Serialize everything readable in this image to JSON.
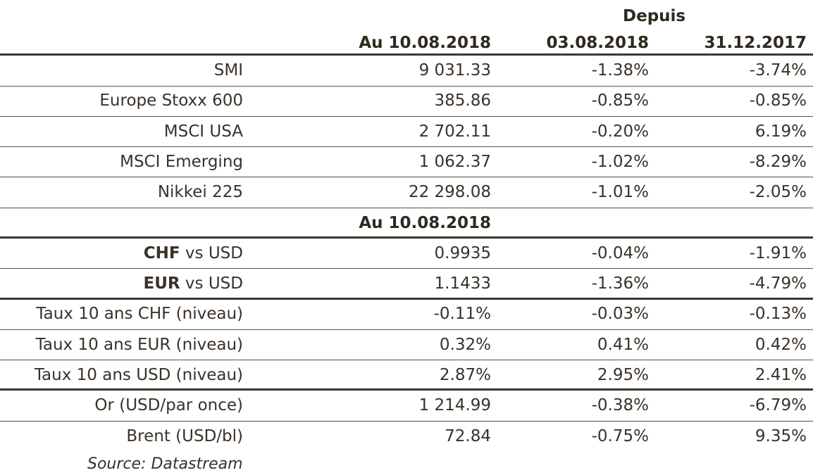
{
  "header": {
    "depuis": "Depuis",
    "col1": "Au 10.08.2018",
    "col2": "03.08.2018",
    "col3": "31.12.2017"
  },
  "section2_header": "Au 10.08.2018",
  "rows_indices": [
    {
      "label": "SMI",
      "v1": "9 031.33",
      "v2": "-1.38%",
      "v3": "-3.74%"
    },
    {
      "label": "Europe Stoxx 600",
      "v1": "385.86",
      "v2": "-0.85%",
      "v3": "-0.85%"
    },
    {
      "label": "MSCI USA",
      "v1": "2 702.11",
      "v2": "-0.20%",
      "v3": "6.19%"
    },
    {
      "label": "MSCI Emerging",
      "v1": "1 062.37",
      "v2": "-1.02%",
      "v3": "-8.29%"
    },
    {
      "label": "Nikkei 225",
      "v1": "22 298.08",
      "v2": "-1.01%",
      "v3": "-2.05%"
    }
  ],
  "rows_fx": [
    {
      "label_bold": "CHF",
      "label_rest": " vs USD",
      "v1": "0.9935",
      "v2": "-0.04%",
      "v3": "-1.91%"
    },
    {
      "label_bold": "EUR",
      "label_rest": " vs USD",
      "v1": "1.1433",
      "v2": "-1.36%",
      "v3": "-4.79%"
    }
  ],
  "rows_rates": [
    {
      "label": "Taux 10 ans CHF (niveau)",
      "v1": "-0.11%",
      "v2": "-0.03%",
      "v3": "-0.13%"
    },
    {
      "label": "Taux 10 ans EUR (niveau)",
      "v1": "0.32%",
      "v2": "0.41%",
      "v3": "0.42%"
    },
    {
      "label": "Taux 10 ans USD (niveau)",
      "v1": "2.87%",
      "v2": "2.95%",
      "v3": "2.41%"
    }
  ],
  "rows_commodities": [
    {
      "label": "Or (USD/par once)",
      "v1": "1 214.99",
      "v2": "-0.38%",
      "v3": "-6.79%"
    },
    {
      "label": "Brent (USD/bl)",
      "v1": "72.84",
      "v2": "-0.75%",
      "v3": "9.35%"
    }
  ],
  "source": "Source: Datastream"
}
